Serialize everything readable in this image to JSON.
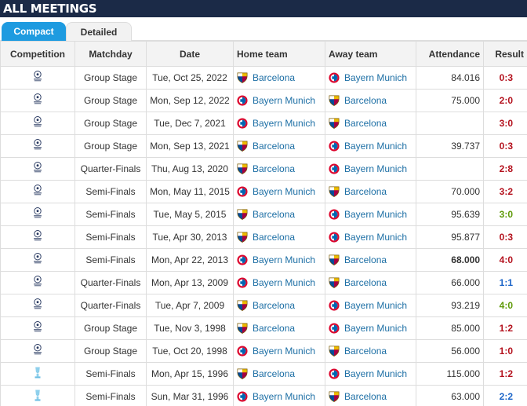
{
  "header": {
    "title": "ALL MEETINGS"
  },
  "tabs": [
    "Compact",
    "Detailed"
  ],
  "table": {
    "columns": [
      "Competition",
      "Matchday",
      "Date",
      "Home team",
      "Away team",
      "Attendance",
      "Result"
    ],
    "rows": [
      {
        "matchday": "Group Stage",
        "date": "Tue, Oct 25, 2022",
        "home": "Barcelona",
        "away": "Bayern Munich",
        "attendance": "84.016",
        "result": "0:3"
      },
      {
        "matchday": "Group Stage",
        "date": "Mon, Sep 12, 2022",
        "home": "Bayern Munich",
        "away": "Barcelona",
        "attendance": "75.000",
        "result": "2:0"
      },
      {
        "matchday": "Group Stage",
        "date": "Tue, Dec 7, 2021",
        "home": "Bayern Munich",
        "away": "Barcelona",
        "attendance": null,
        "result": "3:0"
      },
      {
        "matchday": "Group Stage",
        "date": "Mon, Sep 13, 2021",
        "home": "Barcelona",
        "away": "Bayern Munich",
        "attendance": "39.737",
        "result": "0:3"
      },
      {
        "matchday": "Quarter-Finals",
        "date": "Thu, Aug 13, 2020",
        "home": "Barcelona",
        "away": "Bayern Munich",
        "attendance": null,
        "result": "2:8"
      },
      {
        "matchday": "Semi-Finals",
        "date": "Mon, May 11, 2015",
        "home": "Bayern Munich",
        "away": "Barcelona",
        "attendance": "70.000",
        "result": "3:2"
      },
      {
        "matchday": "Semi-Finals",
        "date": "Tue, May 5, 2015",
        "home": "Barcelona",
        "away": "Bayern Munich",
        "attendance": "95.639",
        "result": "3:0"
      },
      {
        "matchday": "Semi-Finals",
        "date": "Tue, Apr 30, 2013",
        "home": "Barcelona",
        "away": "Bayern Munich",
        "attendance": "95.877",
        "result": "0:3"
      },
      {
        "matchday": "Semi-Finals",
        "date": "Mon, Apr 22, 2013",
        "home": "Bayern Munich",
        "away": "Barcelona",
        "attendance": "68.000",
        "result": "4:0"
      },
      {
        "matchday": "Quarter-Finals",
        "date": "Mon, Apr 13, 2009",
        "home": "Bayern Munich",
        "away": "Barcelona",
        "attendance": "66.000",
        "result": "1:1"
      },
      {
        "matchday": "Quarter-Finals",
        "date": "Tue, Apr 7, 2009",
        "home": "Barcelona",
        "away": "Bayern Munich",
        "attendance": "93.219",
        "result": "4:0"
      },
      {
        "matchday": "Group Stage",
        "date": "Tue, Nov 3, 1998",
        "home": "Barcelona",
        "away": "Bayern Munich",
        "attendance": "85.000",
        "result": "1:2"
      },
      {
        "matchday": "Group Stage",
        "date": "Tue, Oct 20, 1998",
        "home": "Bayern Munich",
        "away": "Barcelona",
        "attendance": "56.000",
        "result": "1:0"
      },
      {
        "matchday": "Semi-Finals",
        "date": "Mon, Apr 15, 1996",
        "home": "Barcelona",
        "away": "Bayern Munich",
        "attendance": "115.000",
        "result": "1:2"
      },
      {
        "matchday": "Semi-Finals",
        "date": "Sun, Mar 31, 1996",
        "home": "Bayern Munich",
        "away": "Barcelona",
        "attendance": "63.000",
        "result": "2:2"
      }
    ]
  }
}
